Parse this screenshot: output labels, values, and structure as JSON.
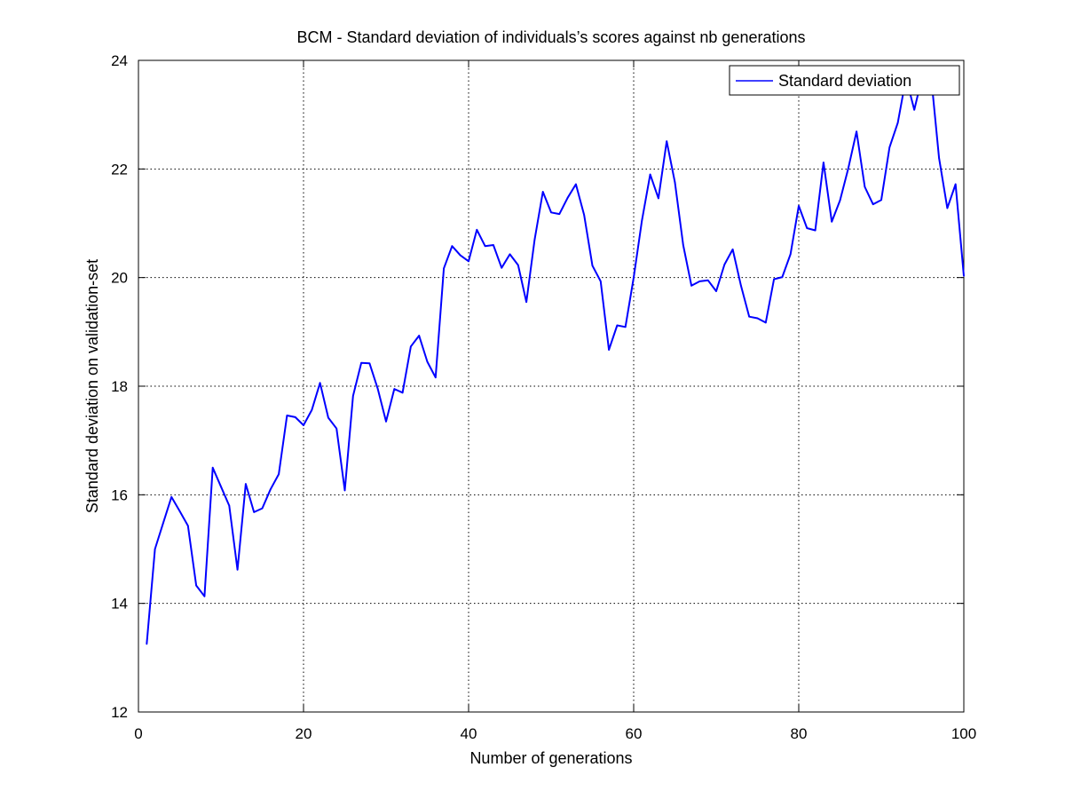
{
  "chart_data": {
    "type": "line",
    "title": "BCM - Standard deviation of individuals’s scores against nb generations",
    "xlabel": "Number of generations",
    "ylabel": "Standard deviation on validation-set",
    "xlim": [
      0,
      100
    ],
    "ylim": [
      12,
      24
    ],
    "x_ticks": [
      0,
      20,
      40,
      60,
      80,
      100
    ],
    "y_ticks": [
      12,
      14,
      16,
      18,
      20,
      22,
      24
    ],
    "grid": true,
    "grid_style": "dotted",
    "legend_position": "top-right",
    "series": [
      {
        "name": "Standard deviation",
        "color": "#0000ff",
        "x": [
          1,
          2,
          3,
          4,
          5,
          6,
          7,
          8,
          9,
          10,
          11,
          12,
          13,
          14,
          15,
          16,
          17,
          18,
          19,
          20,
          21,
          22,
          23,
          24,
          25,
          26,
          27,
          28,
          29,
          30,
          31,
          32,
          33,
          34,
          35,
          36,
          37,
          38,
          39,
          40,
          41,
          42,
          43,
          44,
          45,
          46,
          47,
          48,
          49,
          50,
          51,
          52,
          53,
          54,
          55,
          56,
          57,
          58,
          59,
          60,
          61,
          62,
          63,
          64,
          65,
          66,
          67,
          68,
          69,
          70,
          71,
          72,
          73,
          74,
          75,
          76,
          77,
          78,
          79,
          80,
          81,
          82,
          83,
          84,
          85,
          86,
          87,
          88,
          89,
          90,
          91,
          92,
          93,
          94,
          95,
          96,
          97,
          98,
          99,
          100
        ],
        "values": [
          13.25,
          15.0,
          15.48,
          15.96,
          15.7,
          15.43,
          14.33,
          14.13,
          16.5,
          16.15,
          15.8,
          14.62,
          16.2,
          15.68,
          15.75,
          16.1,
          16.38,
          17.46,
          17.43,
          17.28,
          17.56,
          18.06,
          17.42,
          17.22,
          16.08,
          17.82,
          18.43,
          18.42,
          17.95,
          17.35,
          17.95,
          17.88,
          18.73,
          18.93,
          18.45,
          18.16,
          20.17,
          20.58,
          20.41,
          20.3,
          20.88,
          20.58,
          20.6,
          20.18,
          20.43,
          20.23,
          19.55,
          20.7,
          21.58,
          21.2,
          21.17,
          21.47,
          21.72,
          21.15,
          20.22,
          19.93,
          18.67,
          19.12,
          19.09,
          20.0,
          21.05,
          21.9,
          21.46,
          22.51,
          21.75,
          20.6,
          19.85,
          19.93,
          19.95,
          19.75,
          20.24,
          20.52,
          19.85,
          19.28,
          19.25,
          19.17,
          19.97,
          20.01,
          20.43,
          21.32,
          20.91,
          20.87,
          22.12,
          21.03,
          21.42,
          22.01,
          22.69,
          21.67,
          21.35,
          21.43,
          22.4,
          22.85,
          23.68,
          23.09,
          23.73,
          23.76,
          22.2,
          21.28,
          21.72,
          20.03
        ]
      }
    ]
  }
}
